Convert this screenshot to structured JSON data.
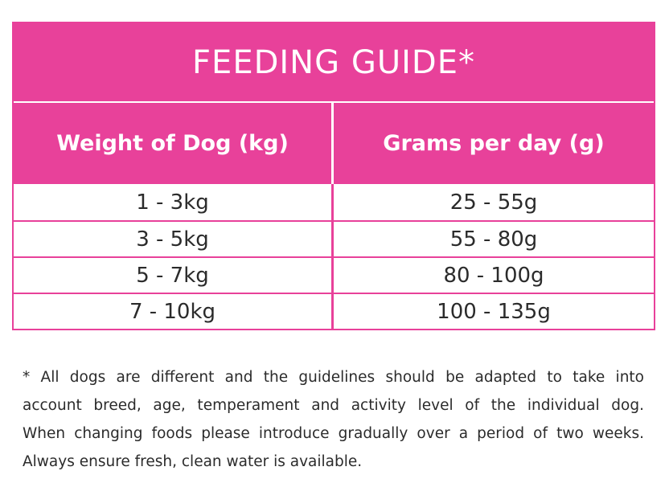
{
  "header": {
    "title": "FEEDING GUIDE*"
  },
  "table": {
    "columns": [
      "Weight of Dog (kg)",
      "Grams per day (g)"
    ],
    "rows": [
      [
        "1 - 3kg",
        "25 - 55g"
      ],
      [
        "3 - 5kg",
        "55 - 80g"
      ],
      [
        "5 - 7kg",
        "80 - 100g"
      ],
      [
        "7 - 10kg",
        "100 - 135g"
      ]
    ]
  },
  "footnote": {
    "lines": [
      "* All dogs are different and the guidelines should be adapted to take into",
      "account breed, age, temperament and activity level of the individual dog.",
      "When changing foods please introduce gradually over a period of two weeks.",
      "Always ensure fresh, clean water is available."
    ]
  }
}
